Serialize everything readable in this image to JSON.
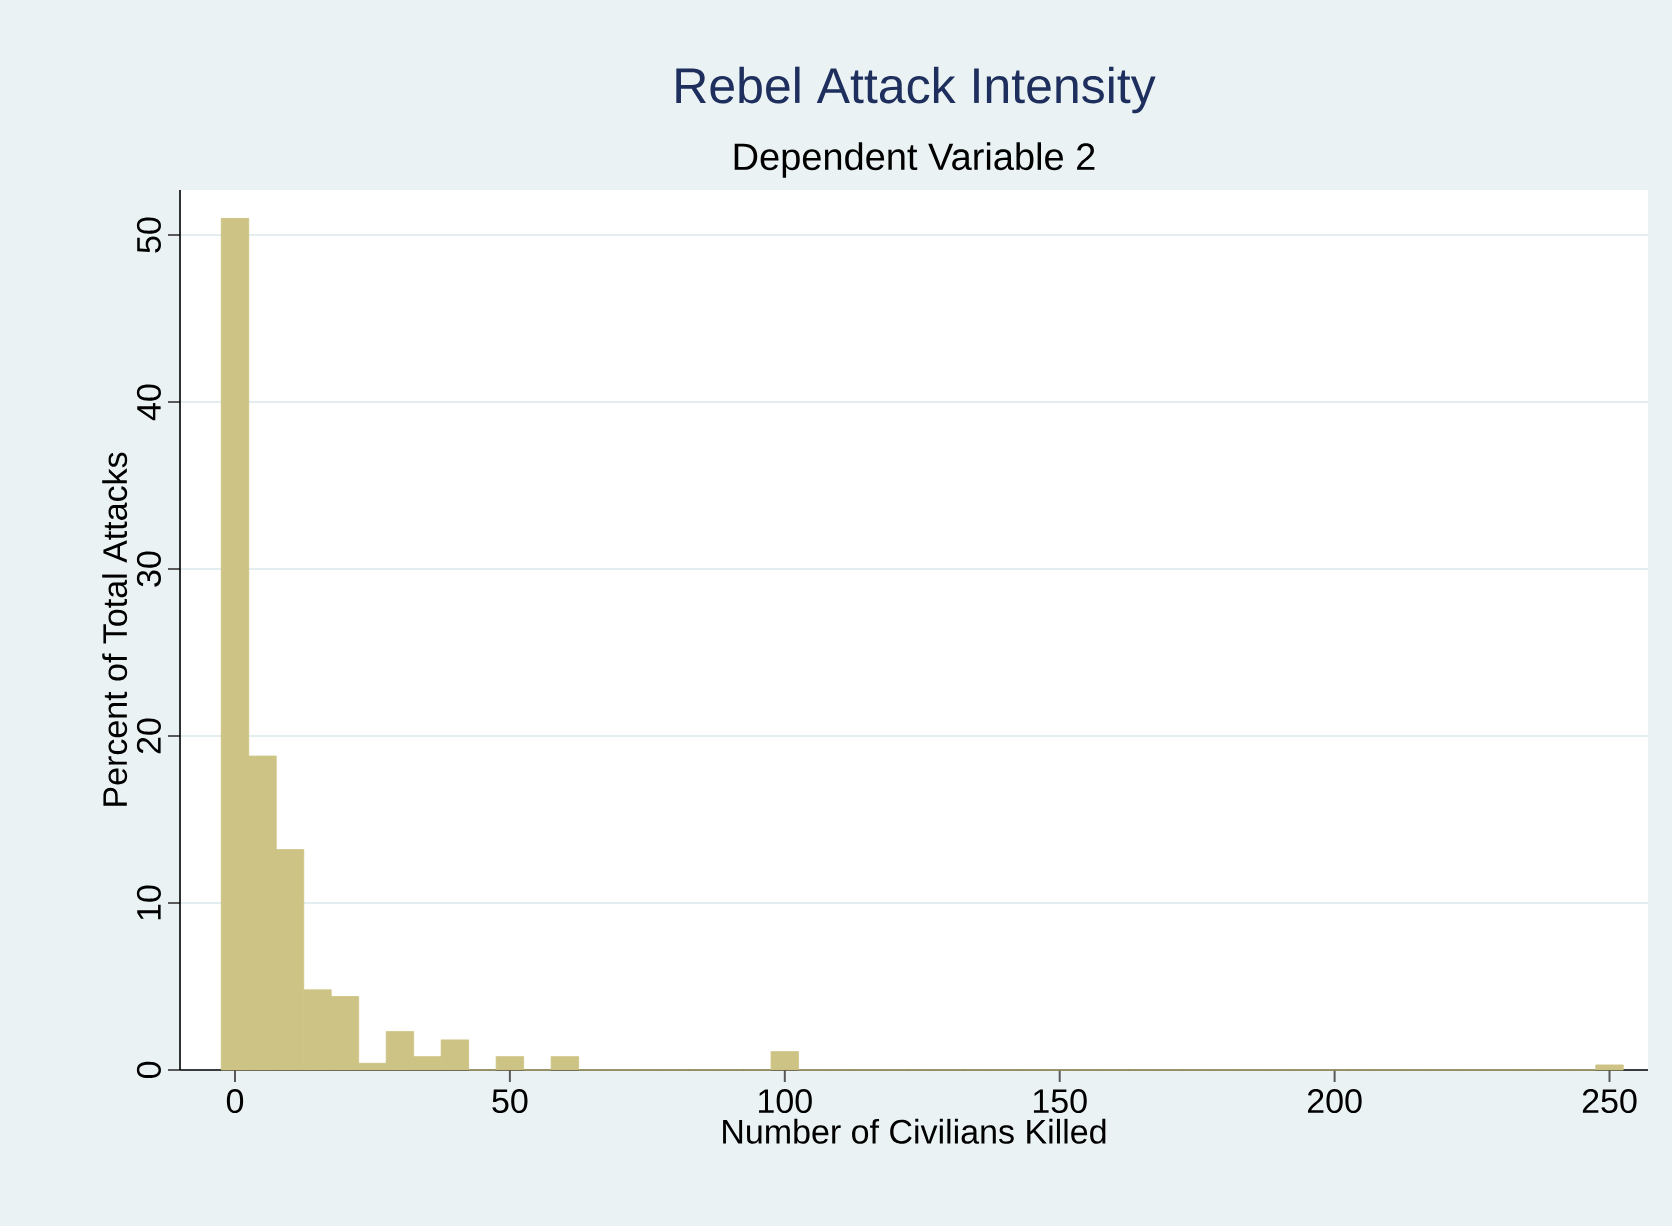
{
  "chart_data": {
    "type": "histogram",
    "title": "Rebel Attack Intensity",
    "subtitle": "Dependent Variable 2",
    "xlabel": "Number of Civilians Killed",
    "ylabel": "Percent of Total Attacks",
    "bins": [
      -2.5,
      2.5,
      7.5,
      12.5,
      17.5,
      22.5,
      27.5,
      32.5,
      37.5,
      42.5,
      47.5,
      52.5,
      57.5,
      62.5,
      67.5,
      72.5,
      77.5,
      82.5,
      87.5,
      92.5,
      97.5,
      102.5,
      107.5,
      112.5,
      117.5,
      122.5,
      127.5,
      132.5,
      137.5,
      142.5,
      147.5,
      152.5,
      157.5,
      162.5,
      167.5,
      172.5,
      177.5,
      182.5,
      187.5,
      192.5,
      197.5,
      202.5,
      207.5,
      212.5,
      217.5,
      222.5,
      227.5,
      232.5,
      237.5,
      242.5,
      247.5,
      252.5
    ],
    "values": [
      51,
      18.8,
      13.2,
      4.8,
      4.4,
      0.4,
      2.3,
      0.8,
      1.8,
      0,
      0.8,
      0,
      0.8,
      0,
      0,
      0,
      0,
      0,
      0,
      0,
      1.1,
      0,
      0,
      0,
      0,
      0,
      0,
      0,
      0,
      0,
      0,
      0,
      0,
      0,
      0,
      0,
      0,
      0,
      0,
      0,
      0,
      0,
      0,
      0,
      0,
      0,
      0,
      0,
      0,
      0,
      0.3
    ],
    "color": "#cdc384",
    "xlim": [
      -10,
      257
    ],
    "ylim": [
      0,
      52.7
    ],
    "xticks": [
      0,
      50,
      100,
      150,
      200,
      250
    ],
    "yticks": [
      0,
      10,
      20,
      30,
      40,
      50
    ],
    "grid": "y"
  }
}
